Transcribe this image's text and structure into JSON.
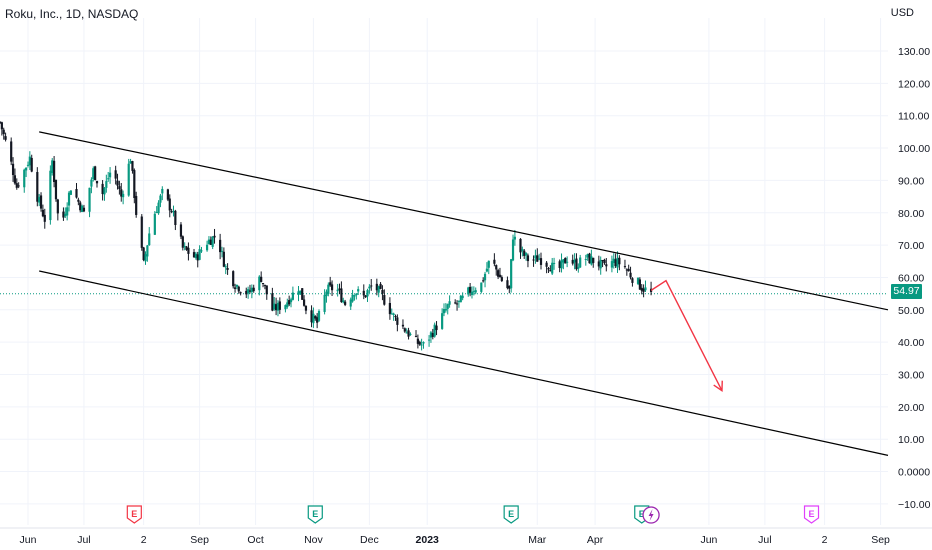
{
  "header": {
    "title": "Roku, Inc., 1D, NASDAQ",
    "currency": "USD"
  },
  "last_price": "54.97",
  "colors": {
    "up": "#089981",
    "down": "#f23645",
    "candle": "#131722",
    "channel": "#000000",
    "arrow": "#f23645",
    "price_line": "#089981"
  },
  "event_markers": [
    {
      "label": "E",
      "icon": "earnings-icon",
      "color": "#f23645",
      "date": "2022-07-28"
    },
    {
      "label": "E",
      "icon": "earnings-icon",
      "color": "#089981",
      "date": "2022-11-02"
    },
    {
      "label": "E",
      "icon": "earnings-icon",
      "color": "#089981",
      "date": "2023-02-15"
    },
    {
      "label": "E",
      "icon": "earnings-icon",
      "color": "#089981",
      "date": "2023-04-26"
    },
    {
      "label": "",
      "icon": "lightning-icon",
      "color": "#9c27b0",
      "date": "2023-05-01"
    },
    {
      "label": "E",
      "icon": "earnings-icon",
      "color": "#e040fb",
      "date": "2023-07-26"
    }
  ],
  "chart_data": {
    "type": "candlestick",
    "title": "Roku, Inc., 1D, NASDAQ",
    "y_axis": {
      "position": "right",
      "range": [
        -15,
        135
      ],
      "ticks": [
        "130.00",
        "120.00",
        "110.00",
        "100.00",
        "90.00",
        "80.00",
        "70.00",
        "60.00",
        "50.00",
        "40.00",
        "30.00",
        "20.00",
        "10.00",
        "0.0000",
        "−10.00"
      ],
      "tick_values": [
        130,
        120,
        110,
        100,
        90,
        80,
        70,
        60,
        50,
        40,
        30,
        20,
        10,
        0,
        -10
      ]
    },
    "x_axis": {
      "range": [
        "2022-05-17",
        "2023-09-05"
      ],
      "ticks": [
        {
          "label": "Jun",
          "date": "2022-06-01"
        },
        {
          "label": "Jul",
          "date": "2022-07-01"
        },
        {
          "label": "2",
          "date": "2022-08-02"
        },
        {
          "label": "Sep",
          "date": "2022-09-01"
        },
        {
          "label": "Oct",
          "date": "2022-10-01"
        },
        {
          "label": "Nov",
          "date": "2022-11-01"
        },
        {
          "label": "Dec",
          "date": "2022-12-01"
        },
        {
          "label": "2023",
          "date": "2023-01-01",
          "bold": true
        },
        {
          "label": "Mar",
          "date": "2023-03-01"
        },
        {
          "label": "Apr",
          "date": "2023-04-01"
        },
        {
          "label": "Jun",
          "date": "2023-06-01"
        },
        {
          "label": "Jul",
          "date": "2023-07-01"
        },
        {
          "label": "2",
          "date": "2023-08-02"
        },
        {
          "label": "Sep",
          "date": "2023-09-01"
        }
      ]
    },
    "grid": true,
    "close_path": [
      [
        "2022-05-17",
        108
      ],
      [
        "2022-05-21",
        100
      ],
      [
        "2022-05-26",
        88
      ],
      [
        "2022-06-02",
        97
      ],
      [
        "2022-06-06",
        85
      ],
      [
        "2022-06-10",
        78
      ],
      [
        "2022-06-14",
        96
      ],
      [
        "2022-06-18",
        74
      ],
      [
        "2022-06-24",
        88
      ],
      [
        "2022-07-01",
        80
      ],
      [
        "2022-07-06",
        93
      ],
      [
        "2022-07-11",
        86
      ],
      [
        "2022-07-16",
        94
      ],
      [
        "2022-07-21",
        85
      ],
      [
        "2022-07-26",
        97
      ],
      [
        "2022-07-29",
        80
      ],
      [
        "2022-08-02",
        64
      ],
      [
        "2022-08-06",
        77
      ],
      [
        "2022-08-12",
        86
      ],
      [
        "2022-08-17",
        81
      ],
      [
        "2022-08-23",
        69
      ],
      [
        "2022-08-30",
        66
      ],
      [
        "2022-09-05",
        71
      ],
      [
        "2022-09-10",
        73
      ],
      [
        "2022-09-15",
        63
      ],
      [
        "2022-09-20",
        58
      ],
      [
        "2022-09-27",
        55
      ],
      [
        "2022-10-04",
        60
      ],
      [
        "2022-10-10",
        50
      ],
      [
        "2022-10-17",
        52
      ],
      [
        "2022-10-24",
        57
      ],
      [
        "2022-10-29",
        49
      ],
      [
        "2022-11-03",
        46
      ],
      [
        "2022-11-08",
        56
      ],
      [
        "2022-11-13",
        57
      ],
      [
        "2022-11-18",
        52
      ],
      [
        "2022-11-23",
        56
      ],
      [
        "2022-11-28",
        54
      ],
      [
        "2022-12-03",
        58
      ],
      [
        "2022-12-08",
        54
      ],
      [
        "2022-12-14",
        48
      ],
      [
        "2022-12-20",
        44
      ],
      [
        "2022-12-26",
        40
      ],
      [
        "2022-12-30",
        39
      ],
      [
        "2023-01-06",
        45
      ],
      [
        "2023-01-12",
        51
      ],
      [
        "2023-01-18",
        52
      ],
      [
        "2023-01-24",
        56
      ],
      [
        "2023-01-30",
        58
      ],
      [
        "2023-02-04",
        66
      ],
      [
        "2023-02-09",
        60
      ],
      [
        "2023-02-14",
        56
      ],
      [
        "2023-02-16",
        73
      ],
      [
        "2023-02-20",
        68
      ],
      [
        "2023-02-25",
        65
      ],
      [
        "2023-03-02",
        66
      ],
      [
        "2023-03-07",
        64
      ],
      [
        "2023-03-12",
        62
      ],
      [
        "2023-03-17",
        66
      ],
      [
        "2023-03-22",
        64
      ],
      [
        "2023-03-27",
        66
      ],
      [
        "2023-04-01",
        65
      ],
      [
        "2023-04-06",
        63
      ],
      [
        "2023-04-11",
        65
      ],
      [
        "2023-04-16",
        64
      ],
      [
        "2023-04-21",
        60
      ],
      [
        "2023-04-26",
        57
      ],
      [
        "2023-05-01",
        55
      ]
    ],
    "last_close": 54.97,
    "annotations": [
      {
        "type": "trend_line",
        "name": "channel-upper",
        "from": [
          "2022-06-07",
          105
        ],
        "to": [
          "2023-09-05",
          50
        ]
      },
      {
        "type": "trend_line",
        "name": "channel-lower",
        "from": [
          "2022-06-07",
          62
        ],
        "to": [
          "2023-09-05",
          5
        ]
      },
      {
        "type": "arrow",
        "points": [
          [
            "2023-05-01",
            56
          ],
          [
            "2023-05-09",
            59
          ],
          [
            "2023-06-08",
            25
          ]
        ]
      }
    ]
  }
}
